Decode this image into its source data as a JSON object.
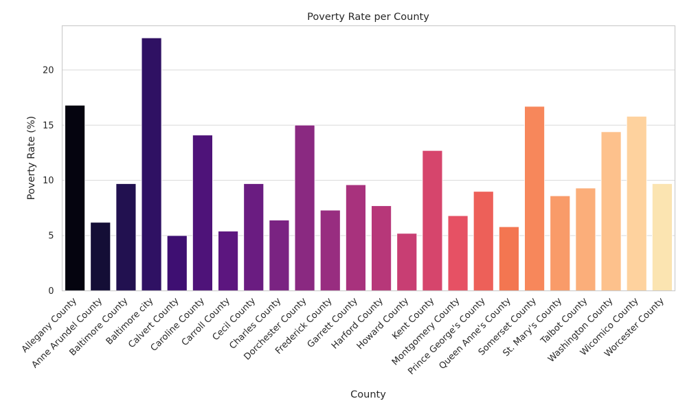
{
  "chart_data": {
    "type": "bar",
    "title": "Poverty Rate per County",
    "xlabel": "County",
    "ylabel": "Poverty Rate (%)",
    "ylim": [
      0,
      24
    ],
    "yticks": [
      0,
      5,
      10,
      15,
      20
    ],
    "grid": "horizontal",
    "palette": "magma",
    "categories": [
      "Allegany County",
      "Anne Arundel County",
      "Baltimore County",
      "Baltimore city",
      "Calvert County",
      "Caroline County",
      "Carroll County",
      "Cecil County",
      "Charles County",
      "Dorchester County",
      "Frederick County",
      "Garrett County",
      "Harford County",
      "Howard County",
      "Kent County",
      "Montgomery County",
      "Prince George's County",
      "Queen Anne's County",
      "Somerset County",
      "St. Mary's County",
      "Talbot County",
      "Washington County",
      "Wicomico County",
      "Worcester County"
    ],
    "values": [
      16.8,
      6.2,
      9.7,
      22.9,
      5.0,
      14.1,
      5.4,
      9.7,
      6.4,
      15.0,
      7.3,
      9.6,
      7.7,
      5.2,
      12.7,
      6.8,
      9.0,
      5.8,
      16.7,
      8.6,
      9.3,
      14.4,
      15.8,
      9.7
    ],
    "colors": [
      "#05040f",
      "#140e36",
      "#221150",
      "#2f1163",
      "#3e0f72",
      "#4e1379",
      "#5c167f",
      "#6a1c81",
      "#7a2382",
      "#8a2981",
      "#982d80",
      "#a8327d",
      "#b73779",
      "#c83e73",
      "#d6456c",
      "#e65164",
      "#ed6059",
      "#f37651",
      "#f7875b",
      "#f99b69",
      "#fbae7a",
      "#fdc18c",
      "#fed29e",
      "#fbe4b1"
    ]
  }
}
